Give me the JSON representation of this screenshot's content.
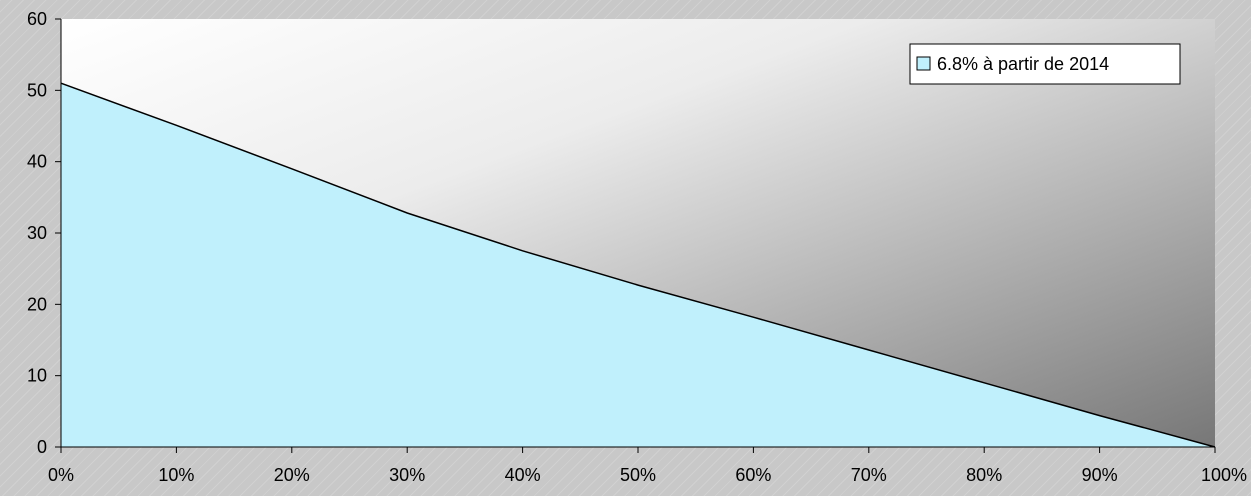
{
  "chart_data": {
    "type": "area",
    "x": [
      "0%",
      "10%",
      "20%",
      "30%",
      "40%",
      "50%",
      "60%",
      "70%",
      "80%",
      "90%",
      "100%"
    ],
    "series": [
      {
        "name": "6.8% à partir de 2014",
        "values": [
          51,
          45.1,
          39,
          32.8,
          27.5,
          22.7,
          18.2,
          13.6,
          9,
          4.4,
          0
        ],
        "fill": "#c0f0fc",
        "line": "#000000"
      }
    ],
    "yticks": [
      "0",
      "10",
      "20",
      "30",
      "40",
      "50",
      "60"
    ],
    "ylim": [
      0,
      60
    ],
    "grid": false,
    "legend": "top-right",
    "plot_background": "gradient white to gray"
  }
}
